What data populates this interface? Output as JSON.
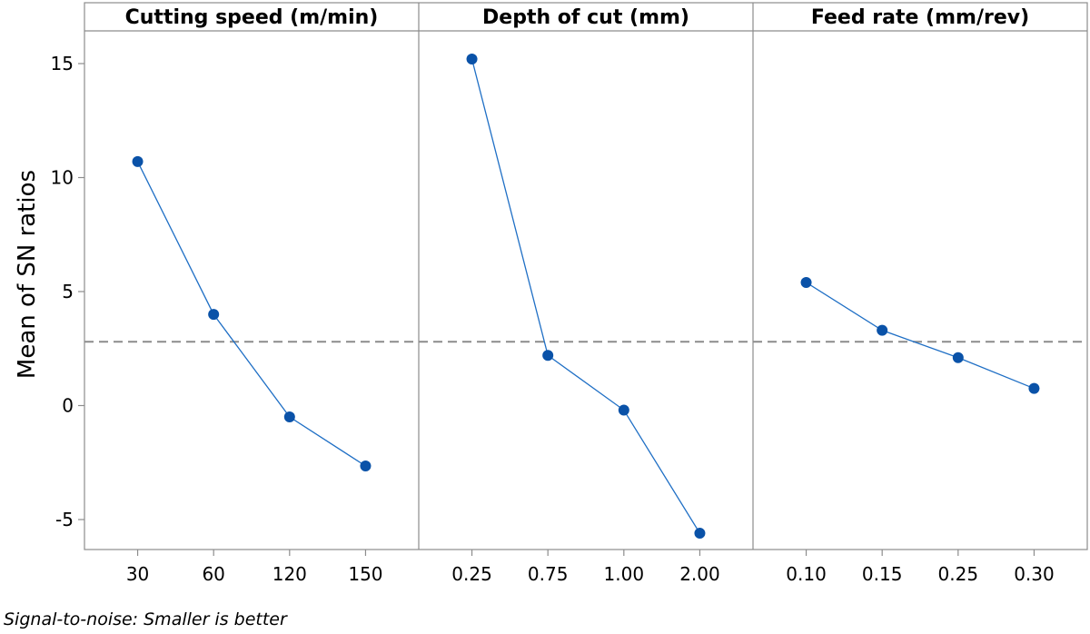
{
  "chart_data": {
    "type": "line",
    "ylabel": "Mean of SN ratios",
    "ylim": [
      -7,
      16.5
    ],
    "yticks": [
      -5,
      0,
      5,
      10,
      15
    ],
    "reference_line": 2.8,
    "footnote": "Signal-to-noise: Smaller is better",
    "colors": {
      "series": "#1f6fc5",
      "marker": "#0a52a8",
      "reference": "#8c8c8c",
      "frame": "#8c8c8c"
    },
    "panels": [
      {
        "title": "Cutting speed (m/min)",
        "categories": [
          "30",
          "60",
          "120",
          "150"
        ],
        "values": [
          10.7,
          4.0,
          -0.5,
          -2.65
        ]
      },
      {
        "title": "Depth of cut (mm)",
        "categories": [
          "0.25",
          "0.75",
          "1.00",
          "2.00"
        ],
        "values": [
          15.2,
          2.2,
          -0.2,
          -5.6
        ]
      },
      {
        "title": "Feed rate (mm/rev)",
        "categories": [
          "0.10",
          "0.15",
          "0.25",
          "0.30"
        ],
        "values": [
          5.4,
          3.3,
          2.1,
          0.75
        ]
      }
    ]
  }
}
